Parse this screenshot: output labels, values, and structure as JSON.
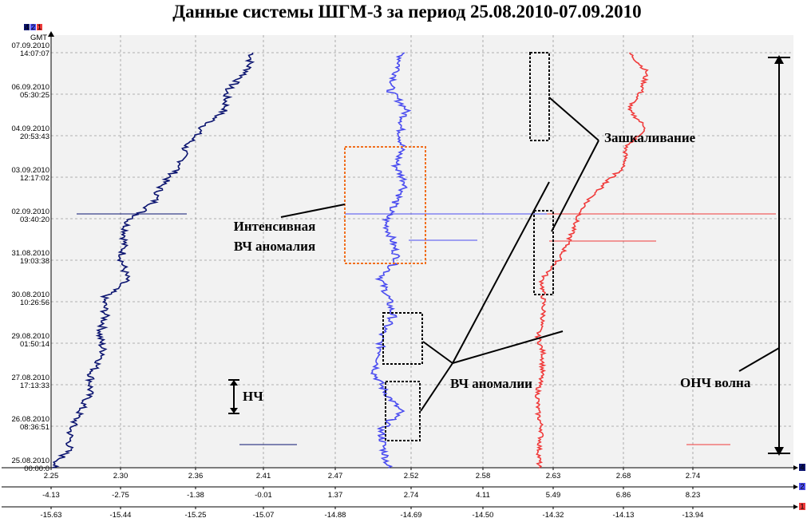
{
  "title": "Данные системы ШГМ-3 за период 25.08.2010-07.09.2010",
  "gmt_label": "GMT",
  "channel_tabs": [
    "4",
    "2",
    "1"
  ],
  "colors": {
    "ch4": "#0b1470",
    "ch2": "#4a4cf0",
    "ch1": "#f03a3a",
    "box_orange": "#f07020",
    "grid": "#9a9a9a"
  },
  "chart_data": {
    "type": "line",
    "orientation": "vertical-time",
    "y_ticks": [
      {
        "date": "07.09.2010",
        "time": "14:07:07"
      },
      {
        "date": "06.09.2010",
        "time": "05:30:25"
      },
      {
        "date": "04.09.2010",
        "time": "20:53:43"
      },
      {
        "date": "03.09.2010",
        "time": "12:17:02"
      },
      {
        "date": "02.09.2010",
        "time": "03:40:20"
      },
      {
        "date": "31.08.2010",
        "time": "19:03:38"
      },
      {
        "date": "30.08.2010",
        "time": "10:26:56"
      },
      {
        "date": "29.08.2010",
        "time": "01:50:14"
      },
      {
        "date": "27.08.2010",
        "time": "17:13:33"
      },
      {
        "date": "26.08.2010",
        "time": "08:36:51"
      },
      {
        "date": "25.08.2010",
        "time": "00:00:0"
      }
    ],
    "axes": [
      {
        "channel": "4",
        "ticks": [
          "2.25",
          "2.30",
          "2.36",
          "2.41",
          "2.47",
          "2.52",
          "2.58",
          "2.63",
          "2.68",
          "2.74"
        ]
      },
      {
        "channel": "2",
        "ticks": [
          "-4.13",
          "-2.75",
          "-1.38",
          "-0.01",
          "1.37",
          "2.74",
          "4.11",
          "5.49",
          "6.86",
          "8.23"
        ]
      },
      {
        "channel": "1",
        "ticks": [
          "-15.63",
          "-15.44",
          "-15.25",
          "-15.07",
          "-14.88",
          "-14.69",
          "-14.50",
          "-14.32",
          "-14.13",
          "-13.94"
        ]
      }
    ],
    "series": [
      {
        "channel": "4",
        "axis": 0,
        "values": [
          2.402,
          2.398,
          2.383,
          2.382,
          2.365,
          2.352,
          2.348,
          2.333,
          2.326,
          2.305,
          2.303,
          2.301,
          2.305,
          2.288,
          2.289,
          2.285,
          2.288,
          2.279,
          2.278,
          2.271,
          2.264,
          2.263,
          2.251
        ]
      },
      {
        "channel": "2",
        "axis": 0,
        "values": [
          2.514,
          2.511,
          2.506,
          2.517,
          2.513,
          2.514,
          2.51,
          2.517,
          2.509,
          2.503,
          2.508,
          2.511,
          2.5,
          2.505,
          2.508,
          2.5,
          2.5,
          2.496,
          2.503,
          2.513,
          2.5,
          2.502,
          2.505
        ]
      },
      {
        "channel": "1",
        "axis": 0,
        "values": [
          2.685,
          2.7,
          2.696,
          2.684,
          2.7,
          2.682,
          2.681,
          2.666,
          2.653,
          2.646,
          2.641,
          2.634,
          2.622,
          2.623,
          2.623,
          2.619,
          2.623,
          2.622,
          2.619,
          2.619,
          2.622,
          2.62,
          2.62
        ]
      }
    ],
    "annotations": {
      "intense_label_1": "Интенсивная",
      "intense_label_2": "ВЧ аномалия",
      "clipping": "Зашкаливание",
      "hf": "ВЧ аномалии",
      "lf": "НЧ",
      "ulf": "ОНЧ волна"
    },
    "grid": true
  }
}
